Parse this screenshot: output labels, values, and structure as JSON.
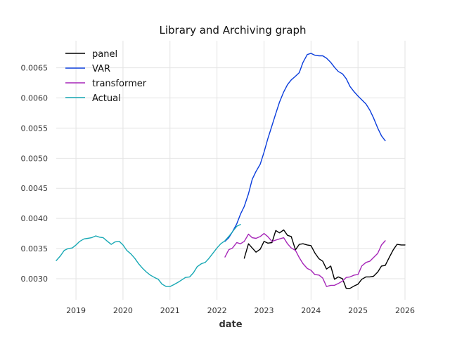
{
  "chart_data": {
    "type": "line",
    "title": "Library and Archiving graph",
    "xlabel": "date",
    "ylabel": "",
    "xlim": [
      2018.58,
      2026.0
    ],
    "ylim": [
      0.00265,
      0.00695
    ],
    "x_ticks": [
      {
        "value": 2019,
        "label": "2019"
      },
      {
        "value": 2020,
        "label": "2020"
      },
      {
        "value": 2021,
        "label": "2021"
      },
      {
        "value": 2022,
        "label": "2022"
      },
      {
        "value": 2023,
        "label": "2023"
      },
      {
        "value": 2024,
        "label": "2024"
      },
      {
        "value": 2025,
        "label": "2025"
      },
      {
        "value": 2026,
        "label": "2026"
      }
    ],
    "y_ticks": [
      {
        "value": 0.003,
        "label": "0.0030"
      },
      {
        "value": 0.0035,
        "label": "0.0035"
      },
      {
        "value": 0.004,
        "label": "0.0040"
      },
      {
        "value": 0.0045,
        "label": "0.0045"
      },
      {
        "value": 0.005,
        "label": "0.0050"
      },
      {
        "value": 0.0055,
        "label": "0.0055"
      },
      {
        "value": 0.006,
        "label": "0.0060"
      },
      {
        "value": 0.0065,
        "label": "0.0065"
      }
    ],
    "grid": true,
    "legend_position": "top-left",
    "series": [
      {
        "name": "panel",
        "color": "#000000",
        "x": [
          2022.58,
          2022.67,
          2022.75,
          2022.83,
          2022.92,
          2023.0,
          2023.08,
          2023.17,
          2023.25,
          2023.33,
          2023.42,
          2023.5,
          2023.58,
          2023.67,
          2023.75,
          2023.83,
          2023.92,
          2024.0,
          2024.08,
          2024.17,
          2024.25,
          2024.33,
          2024.42,
          2024.5,
          2024.58,
          2024.67,
          2024.75,
          2024.83,
          2024.92,
          2025.0,
          2025.08,
          2025.17,
          2025.25,
          2025.33,
          2025.42,
          2025.5,
          2025.58,
          2025.67,
          2025.75,
          2025.83,
          2025.92,
          2026.0
        ],
        "y": [
          0.00334,
          0.00358,
          0.00351,
          0.00344,
          0.00349,
          0.00362,
          0.00359,
          0.0036,
          0.0038,
          0.00376,
          0.00381,
          0.00372,
          0.0037,
          0.00348,
          0.00357,
          0.00358,
          0.00356,
          0.00355,
          0.00343,
          0.00333,
          0.00329,
          0.00316,
          0.00321,
          0.00299,
          0.00303,
          0.003,
          0.00284,
          0.00284,
          0.00288,
          0.00291,
          0.00299,
          0.00303,
          0.00303,
          0.00304,
          0.00311,
          0.00321,
          0.00322,
          0.00336,
          0.00348,
          0.00357,
          0.00356,
          0.00356
        ]
      },
      {
        "name": "VAR",
        "color": "#0a3ddc",
        "x": [
          2022.17,
          2022.25,
          2022.33,
          2022.42,
          2022.5,
          2022.58,
          2022.67,
          2022.75,
          2022.83,
          2022.92,
          2023.0,
          2023.08,
          2023.17,
          2023.25,
          2023.33,
          2023.42,
          2023.5,
          2023.58,
          2023.67,
          2023.75,
          2023.83,
          2023.92,
          2024.0,
          2024.08,
          2024.17,
          2024.25,
          2024.33,
          2024.42,
          2024.5,
          2024.58,
          2024.67,
          2024.75,
          2024.83,
          2024.92,
          2025.0,
          2025.08,
          2025.17,
          2025.25,
          2025.33,
          2025.42,
          2025.5,
          2025.58
        ],
        "y": [
          0.00362,
          0.00368,
          0.00378,
          0.00391,
          0.00407,
          0.0042,
          0.00441,
          0.00465,
          0.00478,
          0.0049,
          0.0051,
          0.00532,
          0.00554,
          0.00574,
          0.00593,
          0.0061,
          0.00622,
          0.0063,
          0.00636,
          0.00642,
          0.00659,
          0.00672,
          0.00674,
          0.00671,
          0.0067,
          0.0067,
          0.00666,
          0.00659,
          0.00651,
          0.00644,
          0.0064,
          0.00632,
          0.00619,
          0.0061,
          0.00603,
          0.00597,
          0.0059,
          0.0058,
          0.00567,
          0.0055,
          0.00537,
          0.00529
        ]
      },
      {
        "name": "transformer",
        "color": "#a626b8",
        "x": [
          2022.17,
          2022.25,
          2022.33,
          2022.42,
          2022.5,
          2022.58,
          2022.67,
          2022.75,
          2022.83,
          2022.92,
          2023.0,
          2023.08,
          2023.17,
          2023.25,
          2023.33,
          2023.42,
          2023.5,
          2023.58,
          2023.67,
          2023.75,
          2023.83,
          2023.92,
          2024.0,
          2024.08,
          2024.17,
          2024.25,
          2024.33,
          2024.42,
          2024.5,
          2024.58,
          2024.67,
          2024.75,
          2024.83,
          2024.92,
          2025.0,
          2025.08,
          2025.17,
          2025.25,
          2025.33,
          2025.42,
          2025.5,
          2025.58
        ],
        "y": [
          0.00336,
          0.00348,
          0.00351,
          0.0036,
          0.00358,
          0.00362,
          0.00374,
          0.00368,
          0.00367,
          0.0037,
          0.00375,
          0.0037,
          0.00362,
          0.00364,
          0.00366,
          0.00368,
          0.00358,
          0.00351,
          0.00347,
          0.00335,
          0.00325,
          0.00317,
          0.00314,
          0.00307,
          0.00306,
          0.00301,
          0.00287,
          0.00289,
          0.00289,
          0.00292,
          0.00296,
          0.00302,
          0.00303,
          0.00306,
          0.00307,
          0.00321,
          0.00327,
          0.00329,
          0.00335,
          0.00342,
          0.00356,
          0.00363
        ]
      },
      {
        "name": "Actual",
        "color": "#17a8b4",
        "x": [
          2018.58,
          2018.67,
          2018.75,
          2018.83,
          2018.92,
          2019.0,
          2019.08,
          2019.17,
          2019.25,
          2019.33,
          2019.42,
          2019.5,
          2019.58,
          2019.67,
          2019.75,
          2019.83,
          2019.92,
          2020.0,
          2020.08,
          2020.17,
          2020.25,
          2020.33,
          2020.42,
          2020.5,
          2020.58,
          2020.67,
          2020.75,
          2020.83,
          2020.92,
          2021.0,
          2021.08,
          2021.17,
          2021.25,
          2021.33,
          2021.42,
          2021.5,
          2021.58,
          2021.67,
          2021.75,
          2021.83,
          2021.92,
          2022.0,
          2022.08,
          2022.17,
          2022.25,
          2022.33,
          2022.42,
          2022.5
        ],
        "y": [
          0.0033,
          0.00338,
          0.00347,
          0.0035,
          0.00351,
          0.00356,
          0.00362,
          0.00366,
          0.00367,
          0.00368,
          0.00371,
          0.00369,
          0.00368,
          0.00362,
          0.00357,
          0.00361,
          0.00362,
          0.00356,
          0.00347,
          0.00341,
          0.00334,
          0.00325,
          0.00317,
          0.00311,
          0.00306,
          0.00302,
          0.00299,
          0.00291,
          0.00287,
          0.00287,
          0.0029,
          0.00294,
          0.00298,
          0.00302,
          0.00303,
          0.0031,
          0.0032,
          0.00325,
          0.00327,
          0.00334,
          0.00343,
          0.00351,
          0.00358,
          0.00363,
          0.0037,
          0.00378,
          0.00387,
          0.0039
        ]
      }
    ]
  }
}
